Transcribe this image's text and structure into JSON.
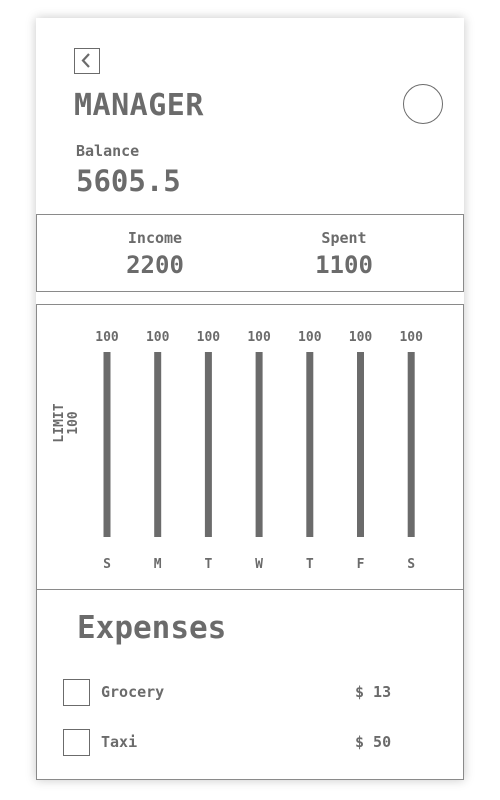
{
  "header": {
    "title": "MANAGER",
    "back_icon": "chevron-left-icon",
    "avatar_icon": "avatar-circle"
  },
  "balance": {
    "label": "Balance",
    "value": "5605.5"
  },
  "summary": {
    "income_label": "Income",
    "income_value": "2200",
    "spent_label": "Spent",
    "spent_value": "1100"
  },
  "chart_data": {
    "type": "bar",
    "categories": [
      "S",
      "M",
      "T",
      "W",
      "T",
      "F",
      "S"
    ],
    "values": [
      100,
      100,
      100,
      100,
      100,
      100,
      100
    ],
    "data_labels": [
      "100",
      "100",
      "100",
      "100",
      "100",
      "100",
      "100"
    ],
    "ylabel": "LIMIT",
    "ylabel_value": "100",
    "ylim": [
      0,
      100
    ],
    "grid": false,
    "bar_color": "#6b6b6b"
  },
  "expenses": {
    "title": "Expenses",
    "items": [
      {
        "name": "Grocery",
        "amount": "$ 13"
      },
      {
        "name": "Taxi",
        "amount": "$ 50"
      }
    ]
  },
  "colors": {
    "text": "#6b6b6b",
    "border": "#8a8a8a",
    "background": "#ffffff"
  }
}
